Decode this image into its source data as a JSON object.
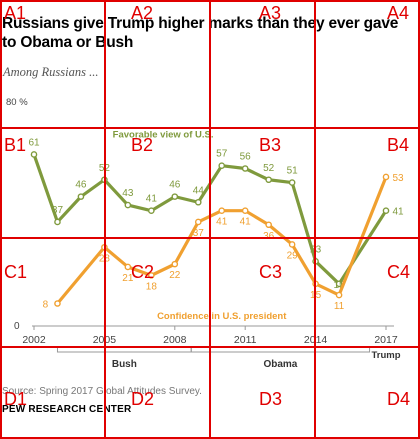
{
  "title": "Russians give Trump higher marks than they ever gave to Obama or Bush",
  "subtitle": "Among Russians ...",
  "source": "Source: Spring 2017 Global Attitudes Survey.",
  "brand": "PEW RESEARCH CENTER",
  "colors": {
    "favorable": "#7f9a3d",
    "confidence": "#f0a030",
    "grid": "#e00000",
    "axis": "#999999"
  },
  "chart_data": {
    "type": "line",
    "title": "Russians give Trump higher marks than they ever gave to Obama or Bush",
    "subtitle": "Among Russians ...",
    "y_top_label": "80 %",
    "ylim": [
      0,
      80
    ],
    "xlim": [
      2002,
      2017
    ],
    "x_ticks": [
      {
        "value": 2002,
        "label": "2002"
      },
      {
        "value": 2005,
        "label": "2005"
      },
      {
        "value": 2008,
        "label": "2008"
      },
      {
        "value": 2011,
        "label": "2011"
      },
      {
        "value": 2014,
        "label": "2014"
      },
      {
        "value": 2017,
        "label": "2017"
      }
    ],
    "y_zero_label": "0",
    "brackets": [
      {
        "label": "Bush",
        "from": 2003,
        "to": 2008.7
      },
      {
        "label": "Obama",
        "from": 2008.7,
        "to": 2016.3
      }
    ],
    "trump_label": "Trump",
    "series": [
      {
        "name": "Favorable view of U.S.",
        "label_at": [
          2007.5,
          67
        ],
        "x": [
          2002,
          2003,
          2004,
          2005,
          2006,
          2007,
          2008,
          2009,
          2010,
          2011,
          2012,
          2013,
          2014,
          2015,
          2017
        ],
        "values": [
          61,
          37,
          46,
          52,
          43,
          41,
          46,
          44,
          57,
          56,
          52,
          51,
          23,
          15,
          41
        ]
      },
      {
        "name": "Confidence in U.S. president",
        "label_at": [
          2010.0,
          2.5
        ],
        "x": [
          2003,
          2005,
          2006,
          2007,
          2008,
          2009,
          2010,
          2011,
          2012,
          2013,
          2014,
          2015,
          2017
        ],
        "values": [
          8,
          28,
          21,
          18,
          22,
          37,
          41,
          41,
          36,
          29,
          15,
          11,
          53
        ]
      }
    ]
  },
  "grid_labels": [
    "A1",
    "A2",
    "A3",
    "A4",
    "B1",
    "B2",
    "B3",
    "B4",
    "C1",
    "C2",
    "C3",
    "C4",
    "D1",
    "D2",
    "D3",
    "D4"
  ]
}
